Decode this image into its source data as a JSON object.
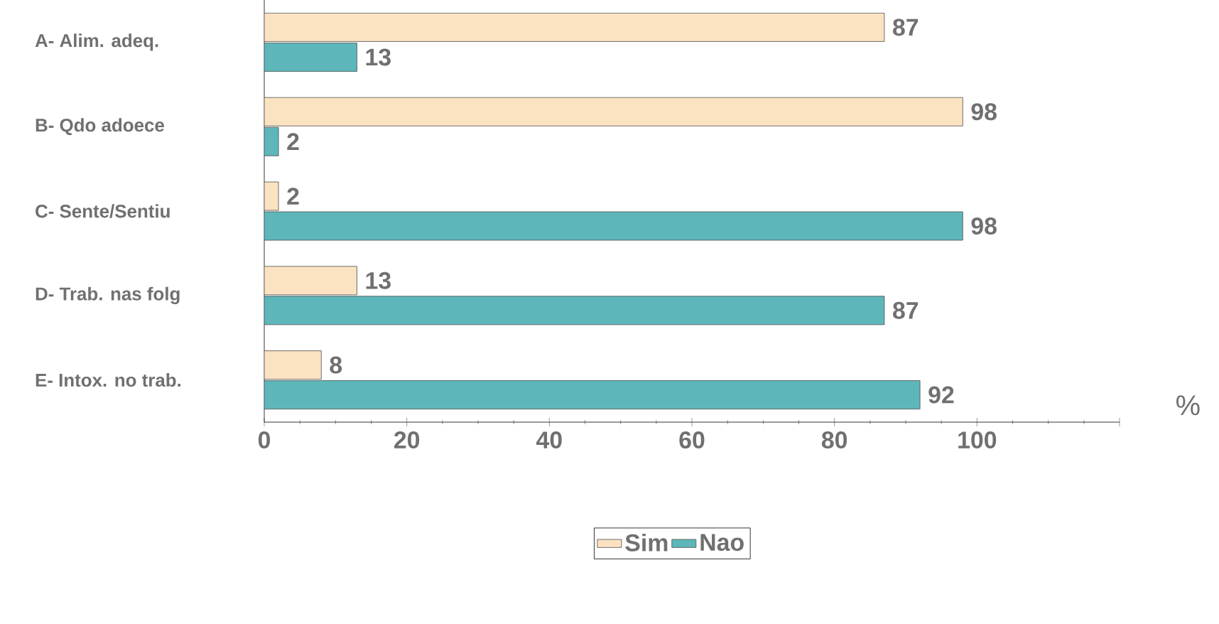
{
  "chart_data": {
    "type": "bar",
    "orientation": "horizontal",
    "xlabel": "%",
    "categories": [
      "A- Alim. adeq.",
      "B- Qdo adoece",
      "C- Sente/Sentiu",
      "D- Trab. nas folg",
      "E- Intox. no trab."
    ],
    "series": [
      {
        "name": "Sim",
        "color": "#fbe3c2",
        "values": [
          87,
          98,
          2,
          13,
          8
        ]
      },
      {
        "name": "Nao",
        "color": "#5db7ba",
        "values": [
          13,
          2,
          98,
          87,
          92
        ]
      }
    ],
    "xlim": [
      0,
      120
    ],
    "xticks": [
      0,
      20,
      40,
      60,
      80,
      100,
      {
        "value": 120,
        "label": null
      }
    ],
    "data_labels": true,
    "legend": "bottom",
    "grid": false
  }
}
